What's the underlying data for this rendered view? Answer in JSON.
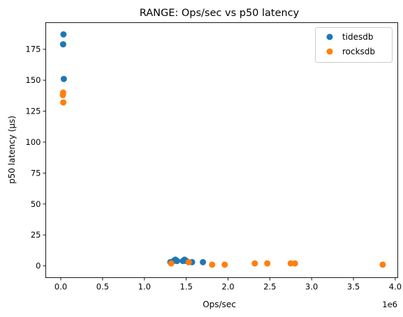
{
  "chart_data": {
    "type": "scatter",
    "title": "RANGE: Ops/sec vs p50 latency",
    "xlabel": "Ops/sec",
    "ylabel": "p50 latency (µs)",
    "x_offset_label": "1e6",
    "x_scale": 1000000,
    "xlim": [
      -180000,
      4030000
    ],
    "ylim": [
      -9.5,
      196.5
    ],
    "x_ticks": [
      0,
      500000,
      1000000,
      1500000,
      2000000,
      2500000,
      3000000,
      3500000,
      4000000
    ],
    "x_tick_labels": [
      "0.0",
      "0.5",
      "1.0",
      "1.5",
      "2.0",
      "2.5",
      "3.0",
      "3.5",
      "4.0"
    ],
    "y_ticks": [
      0,
      25,
      50,
      75,
      100,
      125,
      150,
      175
    ],
    "y_tick_labels": [
      "0",
      "25",
      "50",
      "75",
      "100",
      "125",
      "150",
      "175"
    ],
    "grid": false,
    "legend_position": "top-right",
    "series": [
      {
        "name": "tidesdb",
        "color": "#1f77b4",
        "points": [
          {
            "x": 32000,
            "y": 187
          },
          {
            "x": 28000,
            "y": 179
          },
          {
            "x": 36000,
            "y": 151
          },
          {
            "x": 1310000,
            "y": 3
          },
          {
            "x": 1350000,
            "y": 4
          },
          {
            "x": 1370000,
            "y": 5
          },
          {
            "x": 1390000,
            "y": 4
          },
          {
            "x": 1460000,
            "y": 4
          },
          {
            "x": 1480000,
            "y": 5
          },
          {
            "x": 1500000,
            "y": 4
          },
          {
            "x": 1530000,
            "y": 3
          },
          {
            "x": 1570000,
            "y": 3
          },
          {
            "x": 1700000,
            "y": 3
          }
        ]
      },
      {
        "name": "rocksdb",
        "color": "#ff7f0e",
        "points": [
          {
            "x": 28000,
            "y": 140
          },
          {
            "x": 25000,
            "y": 138
          },
          {
            "x": 30000,
            "y": 132
          },
          {
            "x": 1320000,
            "y": 2
          },
          {
            "x": 1530000,
            "y": 3
          },
          {
            "x": 1810000,
            "y": 1
          },
          {
            "x": 1960000,
            "y": 1
          },
          {
            "x": 2320000,
            "y": 2
          },
          {
            "x": 2470000,
            "y": 2
          },
          {
            "x": 2750000,
            "y": 2
          },
          {
            "x": 2800000,
            "y": 2
          },
          {
            "x": 3850000,
            "y": 1
          }
        ]
      }
    ]
  }
}
